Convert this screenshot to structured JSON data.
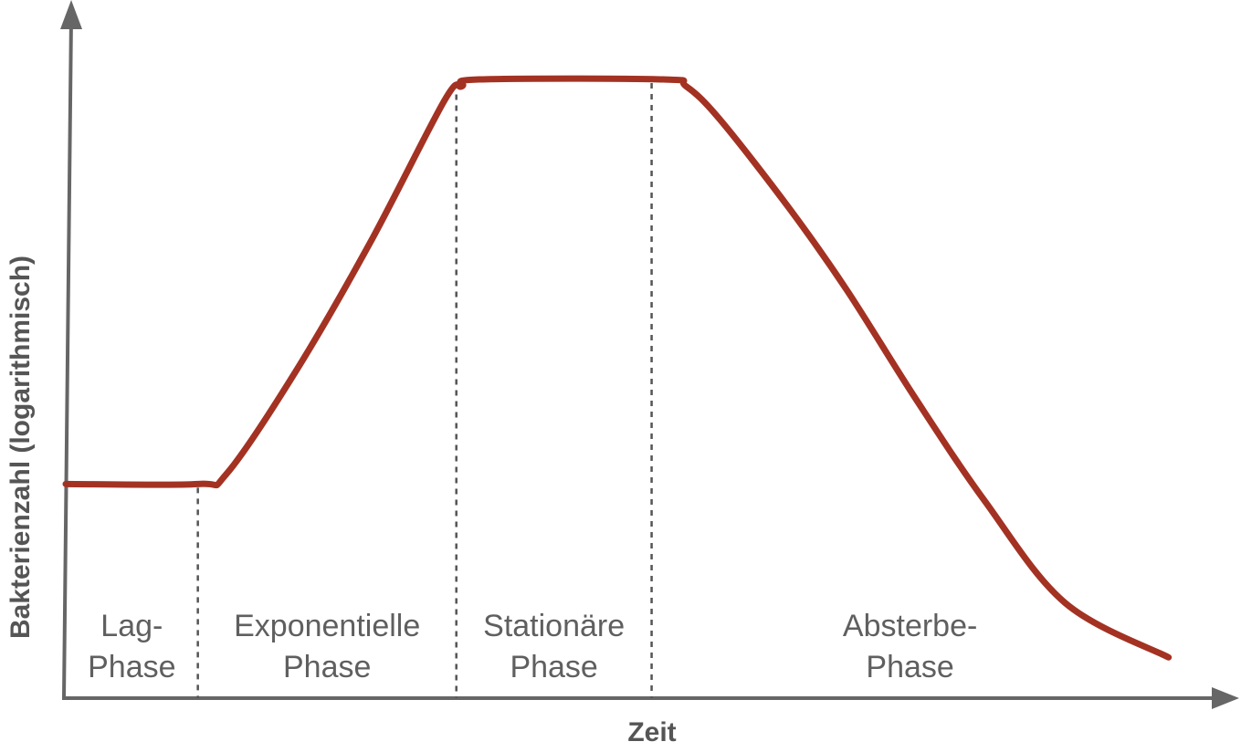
{
  "chart_data": {
    "type": "line",
    "title": "",
    "xlabel": "Zeit",
    "ylabel": "Bakterienzahl (logarithmisch)",
    "y_scale": "log",
    "grid": false,
    "legend": "none",
    "colors": {
      "curve": "#a33223",
      "axes": "#666666",
      "labels": "#5f5f5f"
    },
    "series": [
      {
        "x": [
          0,
          0.115,
          0.14,
          0.2,
          0.265,
          0.33,
          0.345,
          0.36,
          0.52,
          0.54,
          0.57,
          0.63,
          0.68,
          0.74,
          0.8,
          0.87,
          0.96
        ],
        "y": [
          0.315,
          0.315,
          0.33,
          0.48,
          0.67,
          0.88,
          0.9,
          0.91,
          0.91,
          0.9,
          0.85,
          0.72,
          0.6,
          0.44,
          0.29,
          0.14,
          0.06
        ]
      }
    ],
    "phase_boundaries": [
      0.115,
      0.34,
      0.51
    ],
    "phases": [
      {
        "line1": "Lag-",
        "line2": "Phase"
      },
      {
        "line1": "Exponentielle",
        "line2": "Phase"
      },
      {
        "line1": "Stationäre",
        "line2": "Phase"
      },
      {
        "line1": "Absterbe-",
        "line2": "Phase"
      }
    ]
  }
}
